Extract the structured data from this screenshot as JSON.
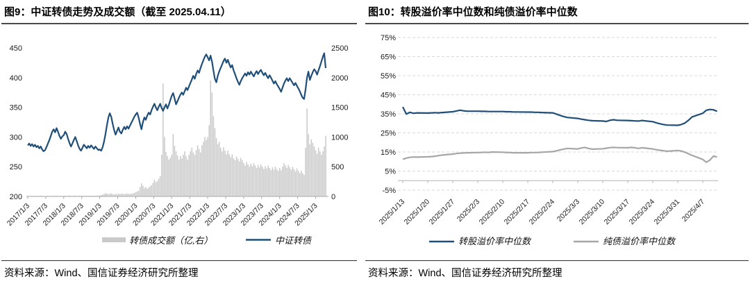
{
  "colors": {
    "navy": "#1f4e79",
    "bar_gray": "#c9c9c9",
    "line_gray": "#a6a6a6",
    "grid_gray": "#d9d9d9",
    "axis_gray": "#a9a9a9",
    "rule_dark": "#4a4a4a"
  },
  "left_panel": {
    "title": "图9：中证转债走势及成交额（截至 2025.04.11）",
    "source": "资料来源：Wind、国信证券经济研究所整理"
  },
  "right_panel": {
    "title": "图10：转股溢价率中位数和纯债溢价率中位数",
    "source": "资料来源：Wind、国信证券经济研究所整理"
  },
  "chart_data": [
    {
      "type": "combo",
      "title": "中证转债走势及成交额（截至 2025.04.11）",
      "left_axis": {
        "min": 200,
        "max": 450,
        "step": 50
      },
      "right_axis": {
        "min": 0,
        "max": 2500,
        "step": 500
      },
      "x_ticks": [
        "2017/1/3",
        "2017/7/3",
        "2018/1/3",
        "2018/7/3",
        "2019/1/3",
        "2019/7/3",
        "2020/1/3",
        "2020/7/3",
        "2021/1/3",
        "2021/7/3",
        "2022/1/3",
        "2022/7/3",
        "2023/1/3",
        "2023/7/3",
        "2024/1/3",
        "2024/7/3",
        "2025/1/3"
      ],
      "series": [
        {
          "name": "中证转债",
          "type": "line",
          "axis": "left",
          "color": "#1f4e79",
          "x0": 2017.0,
          "dx": 0.04,
          "values": [
            286,
            289,
            285,
            288,
            284,
            287,
            283,
            285,
            281,
            284,
            279,
            276,
            278,
            283,
            289,
            295,
            302,
            309,
            313,
            308,
            315,
            309,
            302,
            297,
            301,
            303,
            309,
            305,
            297,
            290,
            284,
            289,
            295,
            300,
            293,
            286,
            280,
            277,
            282,
            287,
            284,
            281,
            285,
            282,
            286,
            283,
            280,
            284,
            281,
            278,
            279,
            277,
            283,
            292,
            305,
            320,
            333,
            340,
            334,
            322,
            312,
            304,
            310,
            316,
            309,
            306,
            312,
            317,
            313,
            318,
            314,
            319,
            324,
            329,
            334,
            338,
            341,
            333,
            322,
            313,
            325,
            333,
            329,
            336,
            341,
            338,
            345,
            351,
            356,
            350,
            345,
            351,
            356,
            349,
            344,
            350,
            355,
            348,
            354,
            362,
            369,
            374,
            365,
            355,
            360,
            366,
            371,
            375,
            371,
            377,
            383,
            379,
            385,
            391,
            397,
            403,
            398,
            406,
            412,
            408,
            416,
            423,
            429,
            435,
            439,
            434,
            429,
            437,
            427,
            412,
            398,
            392,
            403,
            410,
            416,
            422,
            428,
            432,
            425,
            430,
            423,
            417,
            421,
            412,
            406,
            399,
            393,
            388,
            394,
            399,
            403,
            407,
            403,
            409,
            405,
            410,
            406,
            402,
            407,
            411,
            406,
            410,
            413,
            408,
            404,
            408,
            403,
            399,
            404,
            400,
            395,
            390,
            394,
            389,
            385,
            381,
            376,
            383,
            390,
            395,
            399,
            394,
            399,
            395,
            391,
            387,
            391,
            386,
            382,
            377,
            371,
            366,
            364,
            380,
            400,
            410,
            396,
            403,
            409,
            414,
            411,
            405,
            412,
            419,
            427,
            435,
            441,
            416
          ]
        },
        {
          "name": "转债成交额（亿,右）",
          "type": "bar",
          "axis": "right",
          "color": "#c9c9c9",
          "x0": 2017.0,
          "dx": 0.04,
          "values": [
            8,
            10,
            7,
            12,
            9,
            8,
            11,
            7,
            9,
            13,
            8,
            10,
            7,
            9,
            12,
            8,
            11,
            9,
            14,
            10,
            12,
            9,
            11,
            8,
            10,
            10,
            13,
            9,
            12,
            15,
            10,
            8,
            12,
            14,
            9,
            11,
            13,
            10,
            12,
            9,
            14,
            11,
            9,
            12,
            10,
            13,
            9,
            11,
            14,
            12,
            18,
            24,
            30,
            42,
            55,
            48,
            38,
            45,
            52,
            40,
            35,
            42,
            38,
            45,
            40,
            48,
            42,
            38,
            45,
            50,
            44,
            40,
            46,
            52,
            58,
            70,
            85,
            95,
            160,
            220,
            180,
            140,
            160,
            130,
            150,
            170,
            190,
            230,
            280,
            240,
            260,
            300,
            340,
            700,
            1900,
            1000,
            750,
            680,
            620,
            650,
            700,
            1050,
            850,
            760,
            690,
            620,
            680,
            640,
            700,
            760,
            680,
            620,
            700,
            760,
            820,
            740,
            700,
            780,
            860,
            800,
            740,
            860,
            920,
            1000,
            950,
            1000,
            1200,
            1950,
            1750,
            1350,
            1150,
            980,
            880,
            920,
            820,
            760,
            830,
            770,
            710,
            770,
            710,
            660,
            710,
            640,
            610,
            670,
            630,
            590,
            650,
            610,
            560,
            520,
            580,
            540,
            500,
            550,
            510,
            560,
            520,
            480,
            530,
            490,
            540,
            500,
            460,
            510,
            470,
            520,
            480,
            440,
            490,
            450,
            500,
            460,
            430,
            480,
            440,
            500,
            560,
            520,
            480,
            530,
            490,
            450,
            500,
            460,
            420,
            470,
            430,
            390,
            430,
            390,
            360,
            820,
            1480,
            1050,
            880,
            960,
            900,
            840,
            780,
            720,
            820,
            760,
            700,
            760,
            840,
            1020
          ]
        }
      ]
    },
    {
      "type": "line",
      "title": "转股溢价率中位数和纯债溢价率中位数",
      "y_axis": {
        "min": -5,
        "max": 75,
        "step": 10,
        "unit": "%"
      },
      "x_ticks": [
        "2025/1/13",
        "2025/1/20",
        "2025/1/27",
        "2025/2/3",
        "2025/2/10",
        "2025/2/17",
        "2025/2/24",
        "2025/3/3",
        "2025/3/10",
        "2025/3/17",
        "2025/3/24",
        "2025/3/31",
        "2025/4/7"
      ],
      "x_tick_days": [
        0,
        7,
        14,
        21,
        28,
        35,
        42,
        49,
        56,
        63,
        70,
        77,
        84
      ],
      "t_days": [
        0,
        1,
        2,
        3,
        4,
        7,
        8,
        9,
        10,
        11,
        14,
        15,
        16,
        17,
        18,
        21,
        22,
        23,
        24,
        25,
        28,
        29,
        30,
        31,
        32,
        35,
        36,
        37,
        38,
        39,
        42,
        43,
        44,
        45,
        46,
        49,
        50,
        51,
        52,
        53,
        56,
        57,
        58,
        59,
        60,
        63,
        64,
        65,
        66,
        67,
        70,
        71,
        72,
        73,
        74,
        77,
        78,
        79,
        80,
        81,
        84,
        85,
        86,
        87,
        88
      ],
      "series": [
        {
          "name": "转股溢价率中位数",
          "color": "#1f4e79",
          "values": [
            38.6,
            34.9,
            35.8,
            35.3,
            35.5,
            35.4,
            35.5,
            35.6,
            35.5,
            35.7,
            36.1,
            36.5,
            36.9,
            36.6,
            36.4,
            36.4,
            36.3,
            36.3,
            36.2,
            36.2,
            36.2,
            36.1,
            36.1,
            36.0,
            36.0,
            35.9,
            35.9,
            35.8,
            35.8,
            35.7,
            35.5,
            34.9,
            34.2,
            33.6,
            33.1,
            32.6,
            32.2,
            31.9,
            31.6,
            31.4,
            31.2,
            31.0,
            31.6,
            31.9,
            31.6,
            31.5,
            31.4,
            31.3,
            31.2,
            31.5,
            30.9,
            30.3,
            29.8,
            29.4,
            29.1,
            29.0,
            29.4,
            30.2,
            31.6,
            33.4,
            35.3,
            36.9,
            37.3,
            37.1,
            36.3
          ]
        },
        {
          "name": "纯债溢价率中位数",
          "color": "#a6a6a6",
          "values": [
            11.2,
            11.8,
            12.2,
            12.4,
            12.3,
            12.5,
            12.6,
            12.8,
            13.1,
            13.4,
            13.9,
            14.2,
            14.4,
            14.5,
            14.6,
            14.7,
            14.8,
            14.9,
            14.8,
            15.0,
            14.9,
            14.8,
            14.7,
            14.6,
            14.6,
            14.6,
            14.7,
            14.7,
            14.8,
            14.9,
            15.2,
            15.6,
            16.1,
            16.5,
            16.9,
            16.6,
            17.1,
            17.4,
            16.9,
            16.5,
            16.7,
            17.0,
            17.3,
            17.4,
            17.3,
            17.2,
            17.4,
            17.2,
            16.9,
            17.2,
            16.6,
            16.2,
            15.9,
            15.7,
            15.4,
            15.8,
            15.5,
            14.9,
            14.1,
            13.2,
            11.1,
            9.6,
            10.8,
            12.9,
            12.4
          ]
        }
      ]
    }
  ]
}
